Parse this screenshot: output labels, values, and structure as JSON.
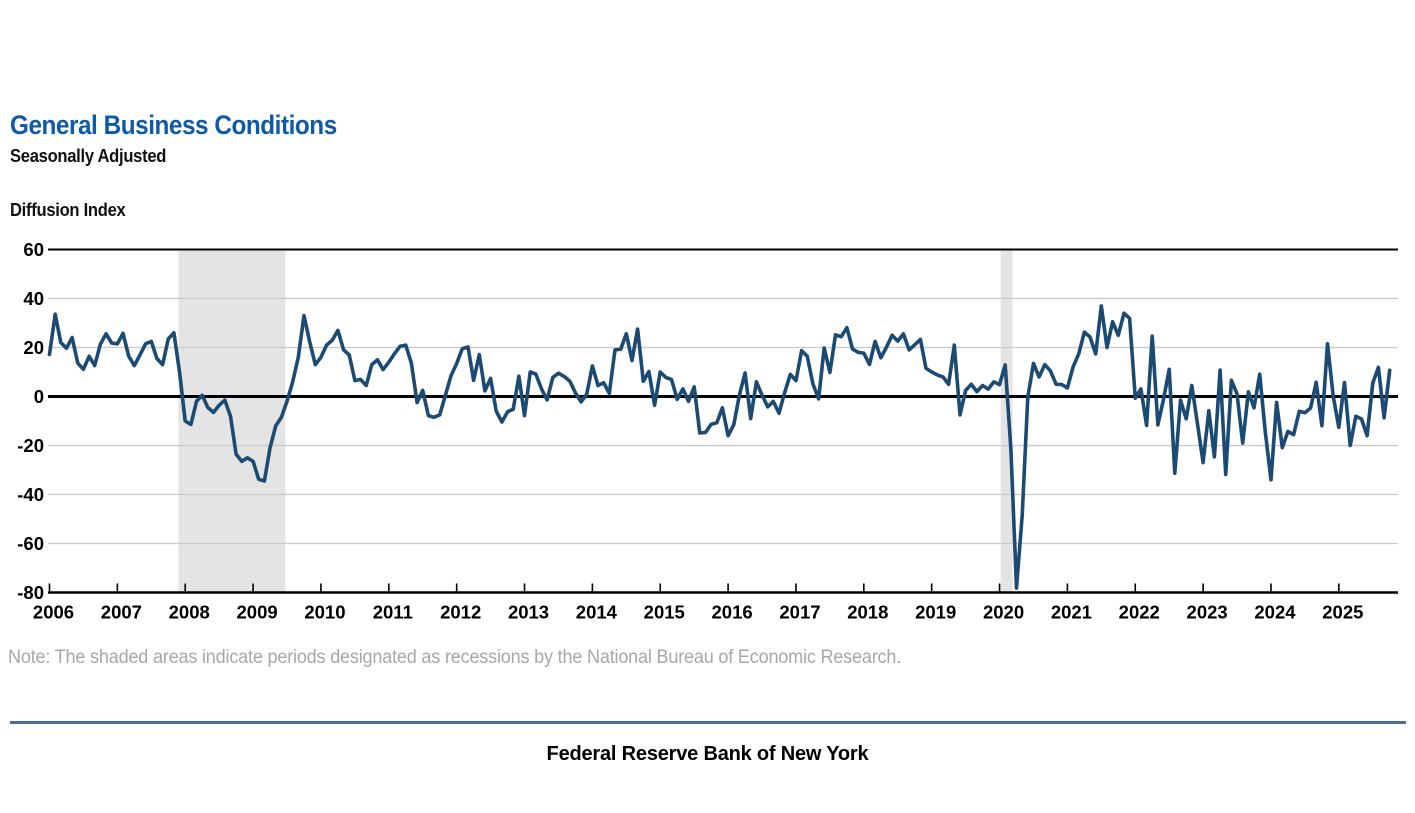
{
  "header": {
    "title": "General Business Conditions",
    "subtitle": "Seasonally Adjusted"
  },
  "axis_label": "Diffusion Index",
  "chart_data": {
    "type": "line",
    "title": "General Business Conditions",
    "subtitle": "Seasonally Adjusted",
    "ylabel": "Diffusion Index",
    "frequency": "monthly",
    "x_start": "2006-01",
    "x_end": "2025-10",
    "ylim": [
      -80,
      60
    ],
    "y_ticks": [
      60,
      40,
      20,
      0,
      -20,
      -40,
      -60,
      -80
    ],
    "x_tick_labels": [
      "2006",
      "2007",
      "2008",
      "2009",
      "2010",
      "2011",
      "2012",
      "2013",
      "2014",
      "2015",
      "2016",
      "2017",
      "2018",
      "2019",
      "2020",
      "2021",
      "2022",
      "2023",
      "2024",
      "2025"
    ],
    "grid": true,
    "legend": "none",
    "series": [
      {
        "name": "General Business Conditions Diffusion Index (seasonally adjusted)",
        "values": [
          17.2,
          33.6,
          22.0,
          19.7,
          24.1,
          13.6,
          11.1,
          16.4,
          12.6,
          21.4,
          25.6,
          21.8,
          21.5,
          25.8,
          16.5,
          12.6,
          17.0,
          21.5,
          22.5,
          15.5,
          13.0,
          23.5,
          26.0,
          9.8,
          -10.0,
          -11.4,
          -2.0,
          0.5,
          -4.5,
          -6.5,
          -3.5,
          -1.5,
          -8.0,
          -23.5,
          -26.5,
          -25.0,
          -26.5,
          -33.8,
          -34.5,
          -21.0,
          -12.0,
          -8.5,
          -2.0,
          6.0,
          16.0,
          33.0,
          22.5,
          13.0,
          16.0,
          21.0,
          23.0,
          27.0,
          19.0,
          17.0,
          6.5,
          7.0,
          4.5,
          13.0,
          15.0,
          11.0,
          14.0,
          17.5,
          20.5,
          21.0,
          13.5,
          -2.5,
          2.5,
          -7.8,
          -8.5,
          -7.5,
          0.5,
          8.5,
          13.5,
          19.5,
          20.2,
          6.6,
          17.1,
          2.3,
          7.4,
          -5.9,
          -10.4,
          -6.2,
          -5.2,
          8.3,
          -7.8,
          10.0,
          9.2,
          3.1,
          -1.4,
          7.8,
          9.5,
          8.2,
          6.3,
          1.5,
          -2.2,
          0.9,
          12.5,
          4.5,
          5.6,
          1.3,
          19.0,
          19.3,
          25.6,
          14.7,
          27.5,
          6.2,
          10.2,
          -3.6,
          10.0,
          7.8,
          6.9,
          -1.2,
          3.1,
          -2.0,
          3.9,
          -14.9,
          -14.7,
          -11.4,
          -10.7,
          -4.6,
          -16.0,
          -11.5,
          0.6,
          9.6,
          -9.0,
          6.0,
          0.6,
          -4.2,
          -2.0,
          -6.8,
          1.5,
          9.0,
          6.5,
          18.7,
          16.4,
          5.2,
          -1.0,
          19.8,
          9.8,
          25.2,
          24.4,
          28.1,
          19.4,
          18.0,
          17.7,
          13.1,
          22.5,
          15.8,
          20.1,
          25.0,
          22.6,
          25.6,
          19.0,
          21.1,
          23.3,
          11.5,
          10.0,
          8.8,
          8.0,
          5.0,
          21.0,
          -7.5,
          2.5,
          5.0,
          2.0,
          4.5,
          3.0,
          6.0,
          4.8,
          12.9,
          -21.5,
          -78.2,
          -48.5,
          -0.2,
          13.5,
          8.0,
          13.0,
          10.5,
          5.0,
          4.9,
          3.5,
          12.1,
          17.4,
          26.3,
          24.3,
          17.4,
          37.0,
          20.0,
          30.5,
          25.0,
          34.0,
          31.9,
          -0.7,
          3.1,
          -11.8,
          24.6,
          -11.6,
          -1.2,
          11.1,
          -31.3,
          -1.5,
          -9.1,
          4.5,
          -11.2,
          -27.0,
          -5.8,
          -24.6,
          10.8,
          -31.8,
          6.6,
          1.1,
          -19.0,
          1.9,
          -4.6,
          9.1,
          -14.5,
          -34.0,
          -2.4,
          -20.9,
          -14.3,
          -15.6,
          -6.0,
          -6.6,
          -4.7,
          5.8,
          -11.9,
          21.5,
          0.2,
          -12.6,
          5.7,
          -20.0,
          -8.1,
          -9.2,
          -16.0,
          5.5,
          11.9,
          -8.7,
          10.7
        ]
      }
    ],
    "recessions": [
      {
        "label": "NBER recession",
        "from": "2007-12",
        "to": "2009-06",
        "start_month_index": 22.8,
        "end_month_index": 41.7
      },
      {
        "label": "NBER recession",
        "from": "2020-02",
        "to": "2020-04",
        "start_month_index": 168.2,
        "end_month_index": 170.3
      }
    ],
    "colors": {
      "line": "#1b4a72",
      "recession_shading": "#e4e4e4",
      "gridline": "#c9c9c9",
      "axis": "#000000",
      "title": "#0e5aa6",
      "note_text": "#a7a7a7",
      "footer_rule": "#4a7195"
    }
  },
  "note": "Note: The shaded areas indicate periods designated as recessions by the National Bureau of Economic Research.",
  "footer": "Federal Reserve Bank of New York"
}
